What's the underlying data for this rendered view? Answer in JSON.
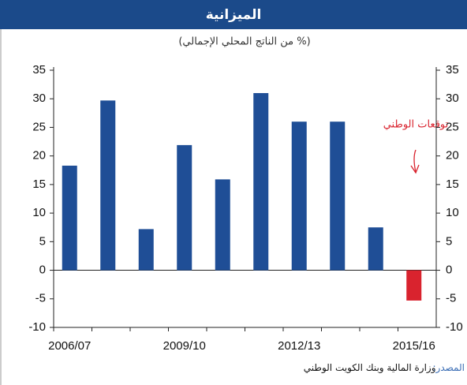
{
  "chart_data": {
    "type": "bar",
    "title": "الميزانية",
    "subtitle": "(% من الناتج المحلي الإجمالي)",
    "categories": [
      "2006/07",
      null,
      null,
      "2009/10",
      null,
      null,
      "2012/13",
      null,
      null,
      "2015/16"
    ],
    "values": [
      18.3,
      29.7,
      7.2,
      21.9,
      15.9,
      31.0,
      26.0,
      26.0,
      7.5,
      -5.3
    ],
    "colors": [
      "#1f4e96",
      "#1f4e96",
      "#1f4e96",
      "#1f4e96",
      "#1f4e96",
      "#1f4e96",
      "#1f4e96",
      "#1f4e96",
      "#1f4e96",
      "#d9232e"
    ],
    "ylim": [
      -10,
      35
    ],
    "yticks": [
      -10,
      -5,
      0,
      5,
      10,
      15,
      20,
      25,
      30,
      35
    ],
    "annotation": "توقعات الوطني",
    "source_label": "المصدر:",
    "source_text": "وزارة المالية وبنك الكويت الوطني"
  }
}
